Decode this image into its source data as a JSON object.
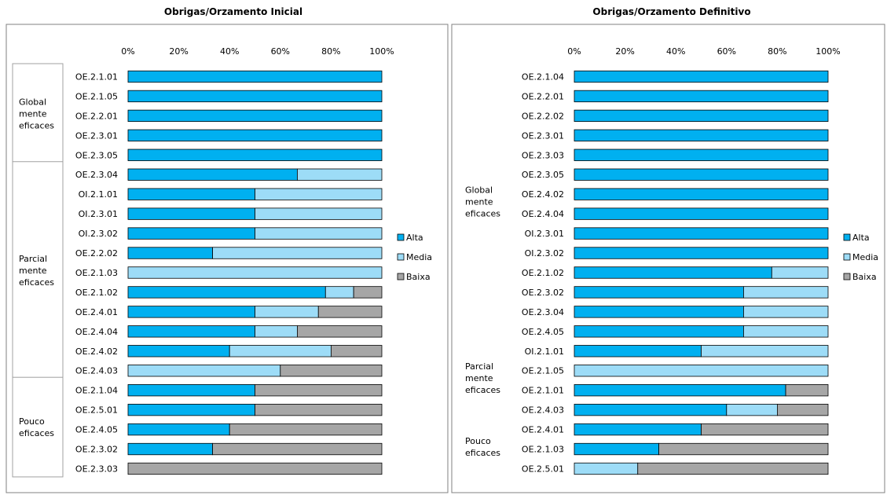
{
  "chart_data": [
    {
      "type": "bar",
      "stacked": true,
      "orientation": "horizontal",
      "title": "Obrigas/Orzamento Inicial",
      "xlim": [
        0,
        100
      ],
      "x_ticks": [
        "0%",
        "20%",
        "40%",
        "60%",
        "80%",
        "100%"
      ],
      "legend_position": "right",
      "series": [
        {
          "name": "Alta",
          "color": "#00B0F0"
        },
        {
          "name": "Media",
          "color": "#9DDCF7"
        },
        {
          "name": "Baixa",
          "color": "#A6A6A6"
        }
      ],
      "groups": [
        {
          "label": "Global mente eficaces",
          "label_lines": [
            "Global",
            "mente",
            "eficaces"
          ],
          "start": 0,
          "end": 4
        },
        {
          "label": "Parcial mente eficaces",
          "label_lines": [
            "Parcial",
            "mente",
            "eficaces"
          ],
          "start": 5,
          "end": 15
        },
        {
          "label": "Pouco eficaces",
          "label_lines": [
            "Pouco",
            "eficaces"
          ],
          "start": 16,
          "end": 20
        }
      ],
      "categories": [
        "OE.2.1.01",
        "OE.2.1.05",
        "OE.2.2.01",
        "OE.2.3.01",
        "OE.2.3.05",
        "OE.2.3.04",
        "OI.2.1.01",
        "OI.2.3.01",
        "OI.2.3.02",
        "OE.2.2.02",
        "OE.2.1.03",
        "OE.2.1.02",
        "OE.2.4.01",
        "OE.2.4.04",
        "OE.2.4.02",
        "OE.2.4.03",
        "OE.2.1.04",
        "OE.2.5.01",
        "OE.2.4.05",
        "OE.2.3.02",
        "OE.2.3.03"
      ],
      "values": [
        [
          100,
          0,
          0
        ],
        [
          100,
          0,
          0
        ],
        [
          100,
          0,
          0
        ],
        [
          100,
          0,
          0
        ],
        [
          100,
          0,
          0
        ],
        [
          66.7,
          33.3,
          0
        ],
        [
          50,
          50,
          0
        ],
        [
          50,
          50,
          0
        ],
        [
          50,
          50,
          0
        ],
        [
          33.3,
          66.7,
          0
        ],
        [
          0,
          100,
          0
        ],
        [
          77.8,
          11.1,
          11.1
        ],
        [
          50,
          25,
          25
        ],
        [
          50,
          16.7,
          33.3
        ],
        [
          40,
          40,
          20
        ],
        [
          0,
          60,
          40
        ],
        [
          50,
          0,
          50
        ],
        [
          50,
          0,
          50
        ],
        [
          40,
          0,
          60
        ],
        [
          33.3,
          0,
          66.7
        ],
        [
          0,
          0,
          100
        ]
      ]
    },
    {
      "type": "bar",
      "stacked": true,
      "orientation": "horizontal",
      "title": "Obrigas/Orzamento Definitivo",
      "xlim": [
        0,
        100
      ],
      "x_ticks": [
        "0%",
        "20%",
        "40%",
        "60%",
        "80%",
        "100%"
      ],
      "legend_position": "right",
      "series": [
        {
          "name": "Alta",
          "color": "#00B0F0"
        },
        {
          "name": "Media",
          "color": "#9DDCF7"
        },
        {
          "name": "Baixa",
          "color": "#A6A6A6"
        }
      ],
      "groups": [
        {
          "label": "Global mente eficaces",
          "label_lines": [
            "Global",
            "mente",
            "eficaces"
          ],
          "start": 0,
          "end": 13
        },
        {
          "label": "Parcial mente eficaces",
          "label_lines": [
            "Parcial",
            "mente",
            "eficaces"
          ],
          "start": 14,
          "end": 17
        },
        {
          "label": "Pouco eficaces",
          "label_lines": [
            "Pouco",
            "eficaces"
          ],
          "start": 18,
          "end": 20
        }
      ],
      "categories": [
        "OE.2.1.04",
        "OE.2.2.01",
        "OE.2.2.02",
        "OE.2.3.01",
        "OE.2.3.03",
        "OE.2.3.05",
        "OE.2.4.02",
        "OE.2.4.04",
        "OI.2.3.01",
        "OI.2.3.02",
        "OE.2.1.02",
        "OE.2.3.02",
        "OE.2.3.04",
        "OE.2.4.05",
        "OI.2.1.01",
        "OE.2.1.05",
        "OE.2.1.01",
        "OE.2.4.03",
        "OE.2.4.01",
        "OE.2.1.03",
        "OE.2.5.01"
      ],
      "values": [
        [
          100,
          0,
          0
        ],
        [
          100,
          0,
          0
        ],
        [
          100,
          0,
          0
        ],
        [
          100,
          0,
          0
        ],
        [
          100,
          0,
          0
        ],
        [
          100,
          0,
          0
        ],
        [
          100,
          0,
          0
        ],
        [
          100,
          0,
          0
        ],
        [
          100,
          0,
          0
        ],
        [
          100,
          0,
          0
        ],
        [
          77.8,
          22.2,
          0
        ],
        [
          66.7,
          33.3,
          0
        ],
        [
          66.7,
          33.3,
          0
        ],
        [
          66.7,
          33.3,
          0
        ],
        [
          50,
          50,
          0
        ],
        [
          0,
          100,
          0
        ],
        [
          83.3,
          0,
          16.7
        ],
        [
          60,
          20,
          20
        ],
        [
          50,
          0,
          50
        ],
        [
          33.3,
          0,
          66.7
        ],
        [
          0,
          25,
          75
        ]
      ]
    }
  ]
}
